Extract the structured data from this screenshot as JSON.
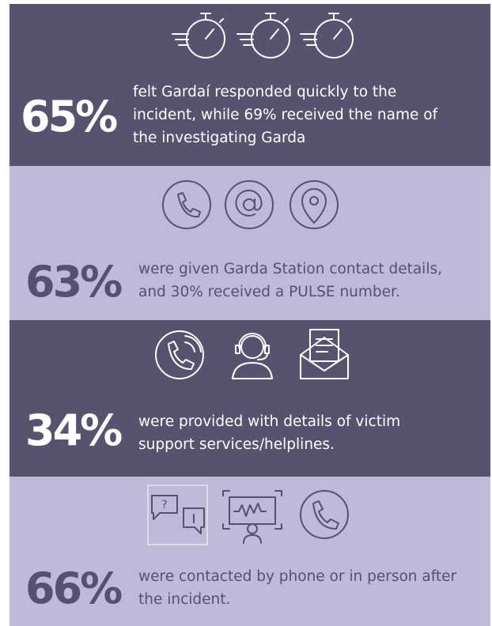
{
  "panels": [
    {
      "stat": "65%",
      "lines": [
        "felt Gardaí responded quickly to the",
        "incident, while 69% received the name of",
        "the investigating Garda"
      ]
    },
    {
      "stat": "63%",
      "lines": [
        "were given Garda Station contact details,",
        "and 30% received a PULSE number."
      ]
    },
    {
      "stat": "34%",
      "lines": [
        "were provided with details of victim",
        "support services/helplines."
      ]
    },
    {
      "stat": "66%",
      "lines": [
        "were contacted by phone or in person after",
        "the incident."
      ]
    }
  ]
}
